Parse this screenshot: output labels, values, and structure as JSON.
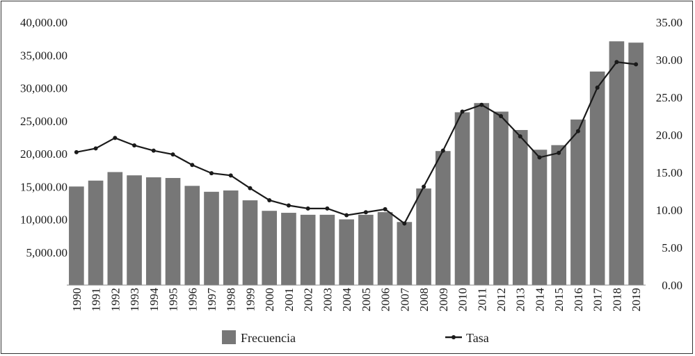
{
  "chart_data": {
    "type": "bar+line",
    "categories": [
      "1990",
      "1991",
      "1992",
      "1993",
      "1994",
      "1995",
      "1996",
      "1997",
      "1998",
      "1999",
      "2000",
      "2001",
      "2002",
      "2003",
      "2004",
      "2005",
      "2006",
      "2007",
      "2008",
      "2009",
      "2010",
      "2011",
      "2012",
      "2013",
      "2014",
      "2015",
      "2016",
      "2017",
      "2018",
      "2019"
    ],
    "series": [
      {
        "name": "Frecuencia",
        "type": "bar",
        "axis": "left",
        "color": "#777777",
        "values": [
          15000,
          15900,
          17200,
          16700,
          16400,
          16300,
          15100,
          14200,
          14400,
          12900,
          11300,
          11000,
          10700,
          10700,
          10000,
          10700,
          11100,
          9600,
          14700,
          20400,
          26300,
          27700,
          26400,
          23600,
          20600,
          21300,
          25200,
          32500,
          37100,
          36900
        ]
      },
      {
        "name": "Tasa",
        "type": "line",
        "axis": "right",
        "color": "#1a1a1a",
        "values": [
          17.7,
          18.2,
          19.6,
          18.6,
          17.9,
          17.4,
          16.0,
          14.9,
          14.6,
          12.9,
          11.3,
          10.6,
          10.2,
          10.2,
          9.3,
          9.7,
          10.1,
          8.2,
          13.1,
          17.9,
          23.1,
          24.0,
          22.5,
          19.8,
          17.0,
          17.6,
          20.5,
          26.3,
          29.7,
          29.4
        ]
      }
    ],
    "left_axis": {
      "ylim": [
        0,
        40000
      ],
      "ticks": [
        5000,
        10000,
        15000,
        20000,
        25000,
        30000,
        35000,
        40000
      ],
      "tick_labels": [
        "5,000.00",
        "10,000.00",
        "15,000.00",
        "20,000.00",
        "25,000.00",
        "30,000.00",
        "35,000.00",
        "40,000.00"
      ]
    },
    "right_axis": {
      "ylim": [
        0,
        35
      ],
      "ticks": [
        0,
        5,
        10,
        15,
        20,
        25,
        30,
        35
      ],
      "tick_labels": [
        "0.00",
        "5.00",
        "10.00",
        "15.00",
        "20.00",
        "25.00",
        "30.00",
        "35.00"
      ]
    },
    "x_label_orientation": "vertical",
    "grid": false,
    "legend": {
      "placement": "bottom",
      "entries": [
        {
          "label": "Frecuencia",
          "symbol": "bar"
        },
        {
          "label": "Tasa",
          "symbol": "line-marker"
        }
      ]
    }
  }
}
